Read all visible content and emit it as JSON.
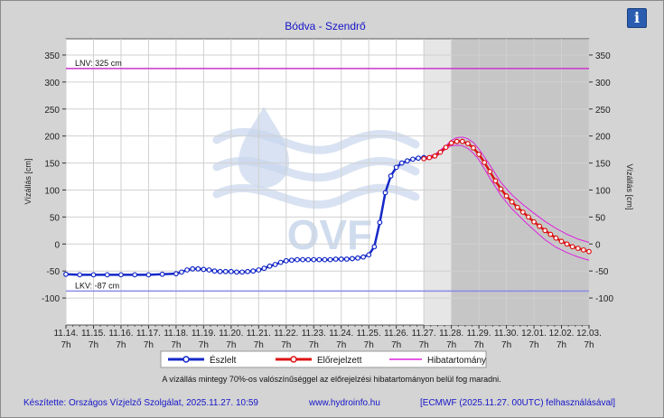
{
  "info_button": {
    "glyph": "i",
    "icon": "info-icon"
  },
  "chart_data": {
    "type": "line",
    "title": "Bódva - Szendrő",
    "ylabel_left": "Vízállás [cm]",
    "ylabel_right": "Vízállás [cm]",
    "ylim": [
      -150,
      380
    ],
    "y_ticks": [
      -100,
      -50,
      0,
      50,
      100,
      150,
      200,
      250,
      300,
      350
    ],
    "x_ticks": [
      {
        "date": "11.14.",
        "hour": "7h"
      },
      {
        "date": "11.15.",
        "hour": "7h"
      },
      {
        "date": "11.16.",
        "hour": "7h"
      },
      {
        "date": "11.17.",
        "hour": "7h"
      },
      {
        "date": "11.18.",
        "hour": "7h"
      },
      {
        "date": "11.19.",
        "hour": "7h"
      },
      {
        "date": "11.20.",
        "hour": "7h"
      },
      {
        "date": "11.21.",
        "hour": "7h"
      },
      {
        "date": "11.22.",
        "hour": "7h"
      },
      {
        "date": "11.23.",
        "hour": "7h"
      },
      {
        "date": "11.24.",
        "hour": "7h"
      },
      {
        "date": "11.25.",
        "hour": "7h"
      },
      {
        "date": "11.26.",
        "hour": "7h"
      },
      {
        "date": "11.27.",
        "hour": "7h"
      },
      {
        "date": "11.28.",
        "hour": "7h"
      },
      {
        "date": "11.29.",
        "hour": "7h"
      },
      {
        "date": "11.30.",
        "hour": "7h"
      },
      {
        "date": "12.01.",
        "hour": "7h"
      },
      {
        "date": "12.02.",
        "hour": "7h"
      },
      {
        "date": "12.03.",
        "hour": "7h"
      }
    ],
    "reference_lines": [
      {
        "label": "LNV: 325 cm",
        "value": 325,
        "color": "#cc33cc"
      },
      {
        "label": "LKV: -87 cm",
        "value": -87,
        "color": "#8a8ae6"
      }
    ],
    "shaded_ranges": [
      {
        "start": "11.27. 7h",
        "end": "11.28. 7h",
        "color": "#e6e6e6"
      },
      {
        "start": "11.28. 7h",
        "end": "12.03. 7h",
        "color": "#c6c6c6"
      }
    ],
    "series": [
      {
        "name": "Észlelt",
        "color": "#1428c8",
        "x_days": [
          0,
          0.5,
          1,
          1.5,
          2,
          2.5,
          3,
          3.5,
          4,
          4.2,
          4.4,
          4.6,
          4.8,
          5,
          5.2,
          5.4,
          5.6,
          5.8,
          6,
          6.2,
          6.4,
          6.6,
          6.8,
          7,
          7.2,
          7.4,
          7.6,
          7.8,
          8,
          8.2,
          8.4,
          8.6,
          8.8,
          9,
          9.2,
          9.4,
          9.6,
          9.8,
          10,
          10.2,
          10.4,
          10.6,
          10.8,
          11,
          11.2,
          11.4,
          11.6,
          11.8,
          12,
          12.2,
          12.4,
          12.6,
          12.8,
          13
        ],
        "values": [
          -56,
          -57,
          -57,
          -57,
          -57,
          -57,
          -57,
          -56,
          -55,
          -52,
          -48,
          -46,
          -46,
          -47,
          -48,
          -50,
          -51,
          -51,
          -51,
          -52,
          -52,
          -51,
          -50,
          -48,
          -45,
          -41,
          -38,
          -34,
          -31,
          -30,
          -29,
          -29,
          -29,
          -29,
          -29,
          -29,
          -29,
          -28,
          -28,
          -28,
          -27,
          -26,
          -24,
          -20,
          -5,
          40,
          95,
          126,
          142,
          150,
          154,
          157,
          159,
          160
        ]
      },
      {
        "name": "Előrejelzett",
        "color": "#dc1414",
        "x_days": [
          13,
          13.2,
          13.4,
          13.6,
          13.8,
          14,
          14.2,
          14.4,
          14.6,
          14.8,
          15,
          15.2,
          15.4,
          15.6,
          15.8,
          16,
          16.2,
          16.4,
          16.6,
          16.8,
          17,
          17.2,
          17.4,
          17.6,
          17.8,
          18,
          18.2,
          18.4,
          18.6,
          18.8,
          19
        ],
        "values": [
          158,
          160,
          163,
          170,
          179,
          187,
          190,
          190,
          186,
          178,
          166,
          151,
          134,
          117,
          102,
          89,
          78,
          68,
          59,
          50,
          41,
          33,
          25,
          18,
          11,
          5,
          0,
          -5,
          -8,
          -11,
          -14
        ]
      }
    ],
    "error_band": {
      "name": "Hibatartomány",
      "color": "#dd22dd",
      "x_days": [
        13,
        13.4,
        13.8,
        14,
        14.2,
        14.4,
        14.6,
        14.8,
        15,
        15.4,
        15.8,
        16.2,
        16.6,
        17,
        17.4,
        17.8,
        18.2,
        18.6,
        19
      ],
      "upper": [
        160,
        166,
        182,
        192,
        197,
        198,
        195,
        188,
        176,
        146,
        114,
        91,
        73,
        57,
        42,
        29,
        18,
        9,
        3
      ],
      "lower": [
        156,
        160,
        176,
        182,
        183,
        182,
        177,
        168,
        156,
        122,
        90,
        65,
        45,
        26,
        8,
        -6,
        -16,
        -24,
        -30
      ]
    }
  },
  "legend": {
    "observed_label": "Észlelt",
    "forecast_label": "Előrejelzett",
    "band_label": "Hibatartomány"
  },
  "note": "A vízállás mintegy 70%-os valószínűséggel az előrejelzési hibatartományon belül fog maradni.",
  "footer": {
    "credit": "Készítette: Országos Vízjelző Szolgálat, 2025.11.27. 10:59",
    "website": "www.hydroinfo.hu",
    "model": "[ECMWF (2025.11.27. 00UTC) felhasználásával]"
  },
  "watermark": "OVF"
}
